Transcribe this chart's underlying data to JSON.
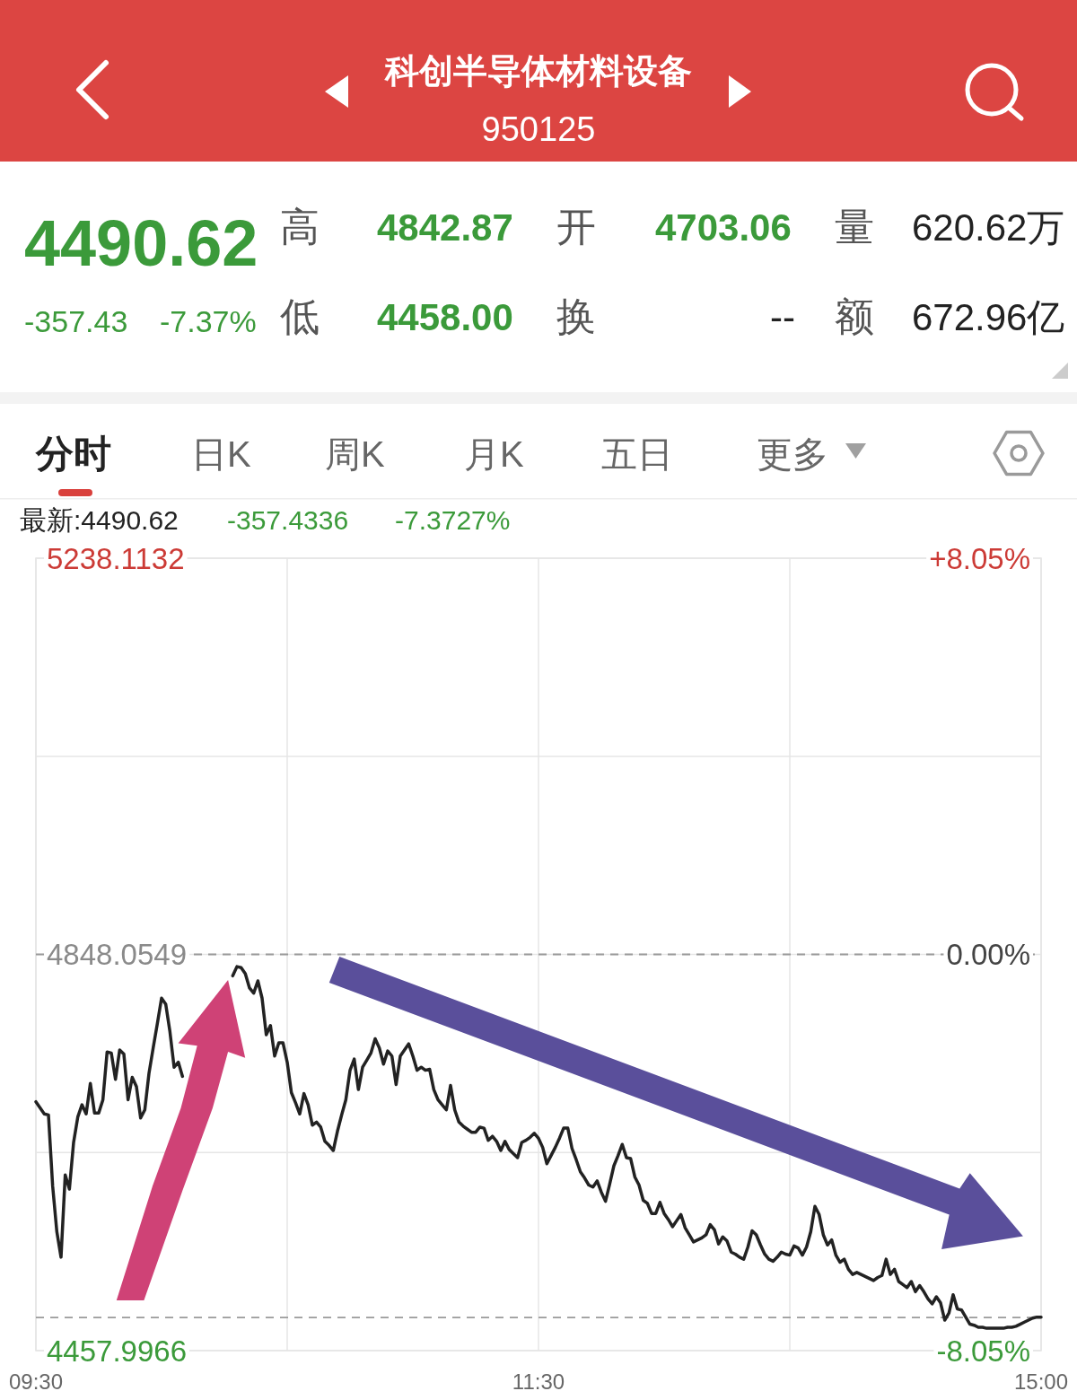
{
  "chart_data": {
    "type": "line",
    "title": "科创半导体材料设备",
    "subtitle": "950125",
    "annotations": [
      "4490.62",
      "-357.43",
      "-7.37%",
      "高",
      "4842.87",
      "开",
      "4703.06",
      "量",
      "620.62万",
      "低",
      "4458.00",
      "换",
      "--",
      "额",
      "672.96亿",
      "分时",
      "日K",
      "周K",
      "月K",
      "五日",
      "更多",
      "最新:4490.62",
      "-357.4336",
      "-7.3727%"
    ],
    "categories": [
      "09:30",
      null,
      null,
      null,
      null,
      null,
      null,
      null,
      null,
      null,
      null,
      null,
      null,
      null,
      null,
      null,
      null,
      null,
      null,
      null,
      null,
      null,
      null,
      null,
      null,
      null,
      null,
      null,
      null,
      null,
      null,
      null,
      null,
      null,
      null,
      null,
      null,
      null,
      null,
      null,
      null,
      null,
      null,
      null,
      null,
      null,
      null,
      null,
      null,
      null,
      null,
      null,
      null,
      null,
      null,
      null,
      null,
      null,
      null,
      null,
      null,
      null,
      null,
      null,
      null,
      null,
      null,
      null,
      null,
      null,
      null,
      null,
      null,
      null,
      null,
      null,
      null,
      null,
      null,
      null,
      null,
      null,
      null,
      null,
      null,
      null,
      null,
      null,
      null,
      null,
      null,
      null,
      null,
      null,
      null,
      null,
      null,
      null,
      null,
      null,
      null,
      null,
      null,
      null,
      null,
      null,
      null,
      null,
      null,
      null,
      null,
      null,
      null,
      null,
      null,
      null,
      null,
      null,
      null,
      null,
      "11:30",
      null,
      null,
      null,
      null,
      null,
      null,
      null,
      null,
      null,
      null,
      null,
      null,
      null,
      null,
      null,
      null,
      null,
      null,
      null,
      null,
      null,
      null,
      null,
      null,
      null,
      null,
      null,
      null,
      null,
      null,
      null,
      null,
      null,
      null,
      null,
      null,
      null,
      null,
      null,
      null,
      null,
      null,
      null,
      null,
      null,
      null,
      null,
      null,
      null,
      null,
      null,
      null,
      null,
      null,
      null,
      null,
      null,
      null,
      null,
      null,
      null,
      null,
      null,
      null,
      null,
      null,
      null,
      null,
      null,
      null,
      null,
      null,
      null,
      null,
      null,
      null,
      null,
      null,
      null,
      null,
      null,
      null,
      null,
      null,
      null,
      null,
      null,
      null,
      null,
      null,
      null,
      null,
      null,
      null,
      null,
      null,
      null,
      null,
      null,
      null,
      null,
      null,
      null,
      null,
      null,
      null,
      null,
      null,
      null,
      null,
      null,
      null,
      null,
      null,
      null,
      null,
      null,
      null,
      null,
      "15:00"
    ],
    "series": [
      {
        "color": "#222222",
        "values": [
          4703,
          4697,
          4691,
          4690,
          4620,
          4575,
          4550,
          4631,
          4617,
          4663,
          4688,
          4700,
          4691,
          4721,
          4692,
          4692,
          4705,
          4752,
          4751,
          4725,
          4754,
          4750,
          4705,
          4727,
          4718,
          4687,
          4695,
          4731,
          4756,
          4780,
          4805,
          4799,
          4772,
          4737,
          4742,
          4728,
          null,
          null,
          null,
          null,
          null,
          null,
          null,
          null,
          null,
          null,
          null,
          4827,
          4836,
          4835,
          4829,
          4815,
          4810,
          4822,
          4805,
          4769,
          4778,
          4748,
          4761,
          4761,
          4742,
          4712,
          4702,
          4691,
          4711,
          4700,
          4680,
          4683,
          4678,
          4664,
          4660,
          4655,
          4674,
          4690,
          4705,
          4734,
          4745,
          4715,
          4737,
          4744,
          4751,
          4765,
          4756,
          4740,
          4753,
          4748,
          4720,
          4748,
          4754,
          4760,
          4748,
          4734,
          4737,
          4734,
          4735,
          4715,
          4705,
          4700,
          4695,
          4719,
          4695,
          4683,
          4679,
          4676,
          4673,
          4673,
          4678,
          4677,
          4665,
          4669,
          4664,
          4655,
          4664,
          4656,
          4652,
          4648,
          4663,
          4665,
          4668,
          4672,
          4667,
          4658,
          4642,
          4650,
          4658,
          4667,
          4677,
          4677,
          4657,
          4646,
          4634,
          4628,
          4621,
          4619,
          4625,
          4614,
          4605,
          4622,
          4640,
          4650,
          4661,
          4648,
          4647,
          4629,
          4621,
          4606,
          4603,
          4593,
          4593,
          4604,
          4593,
          4587,
          4580,
          4586,
          4592,
          4579,
          4572,
          4565,
          4567,
          4569,
          4572,
          4582,
          4577,
          4563,
          4570,
          4566,
          4555,
          4553,
          4550,
          4548,
          4560,
          4576,
          4572,
          4562,
          4553,
          4548,
          4546,
          4550,
          4555,
          4553,
          4552,
          4561,
          4559,
          4552,
          4560,
          4575,
          4600,
          4592,
          4572,
          4562,
          4567,
          4552,
          4545,
          4548,
          4538,
          4533,
          4535,
          4533,
          4531,
          4529,
          4527,
          4530,
          4532,
          4548,
          4533,
          4538,
          4526,
          4523,
          4520,
          4526,
          4516,
          4522,
          4516,
          4509,
          4504,
          4511,
          4505,
          4488,
          4495,
          4513,
          4499,
          4498,
          4491,
          4484,
          4483,
          4481,
          4481,
          4480,
          4480,
          4480,
          4480,
          4480,
          4481,
          4481,
          4482,
          4484,
          4486,
          4488,
          4490,
          4491,
          4491
        ]
      }
    ],
    "ylim": [
      4457.9966,
      5238.1132
    ],
    "yticks": [
      4457.9966,
      {
        "value": 4653.0258,
        "label": null
      },
      4848.0549,
      {
        "value": 5043.0841,
        "label": null
      },
      5238.1132
    ],
    "y2lim": [
      -8.05,
      8.05
    ],
    "y2ticks": [
      {
        "value": -8.05,
        "label": "-8.05%"
      },
      {
        "value": 0,
        "label": "0.00%"
      },
      {
        "value": 8.05,
        "label": "+8.05%"
      }
    ],
    "grid": true,
    "ref_lines": [
      {
        "axis": "y",
        "value": 4848.0549,
        "line_style": "dashed",
        "color": "#9a9a9a"
      },
      {
        "axis": "y",
        "value": 4490.62,
        "line_style": "dashed",
        "color": "#9a9a9a"
      }
    ]
  }
}
